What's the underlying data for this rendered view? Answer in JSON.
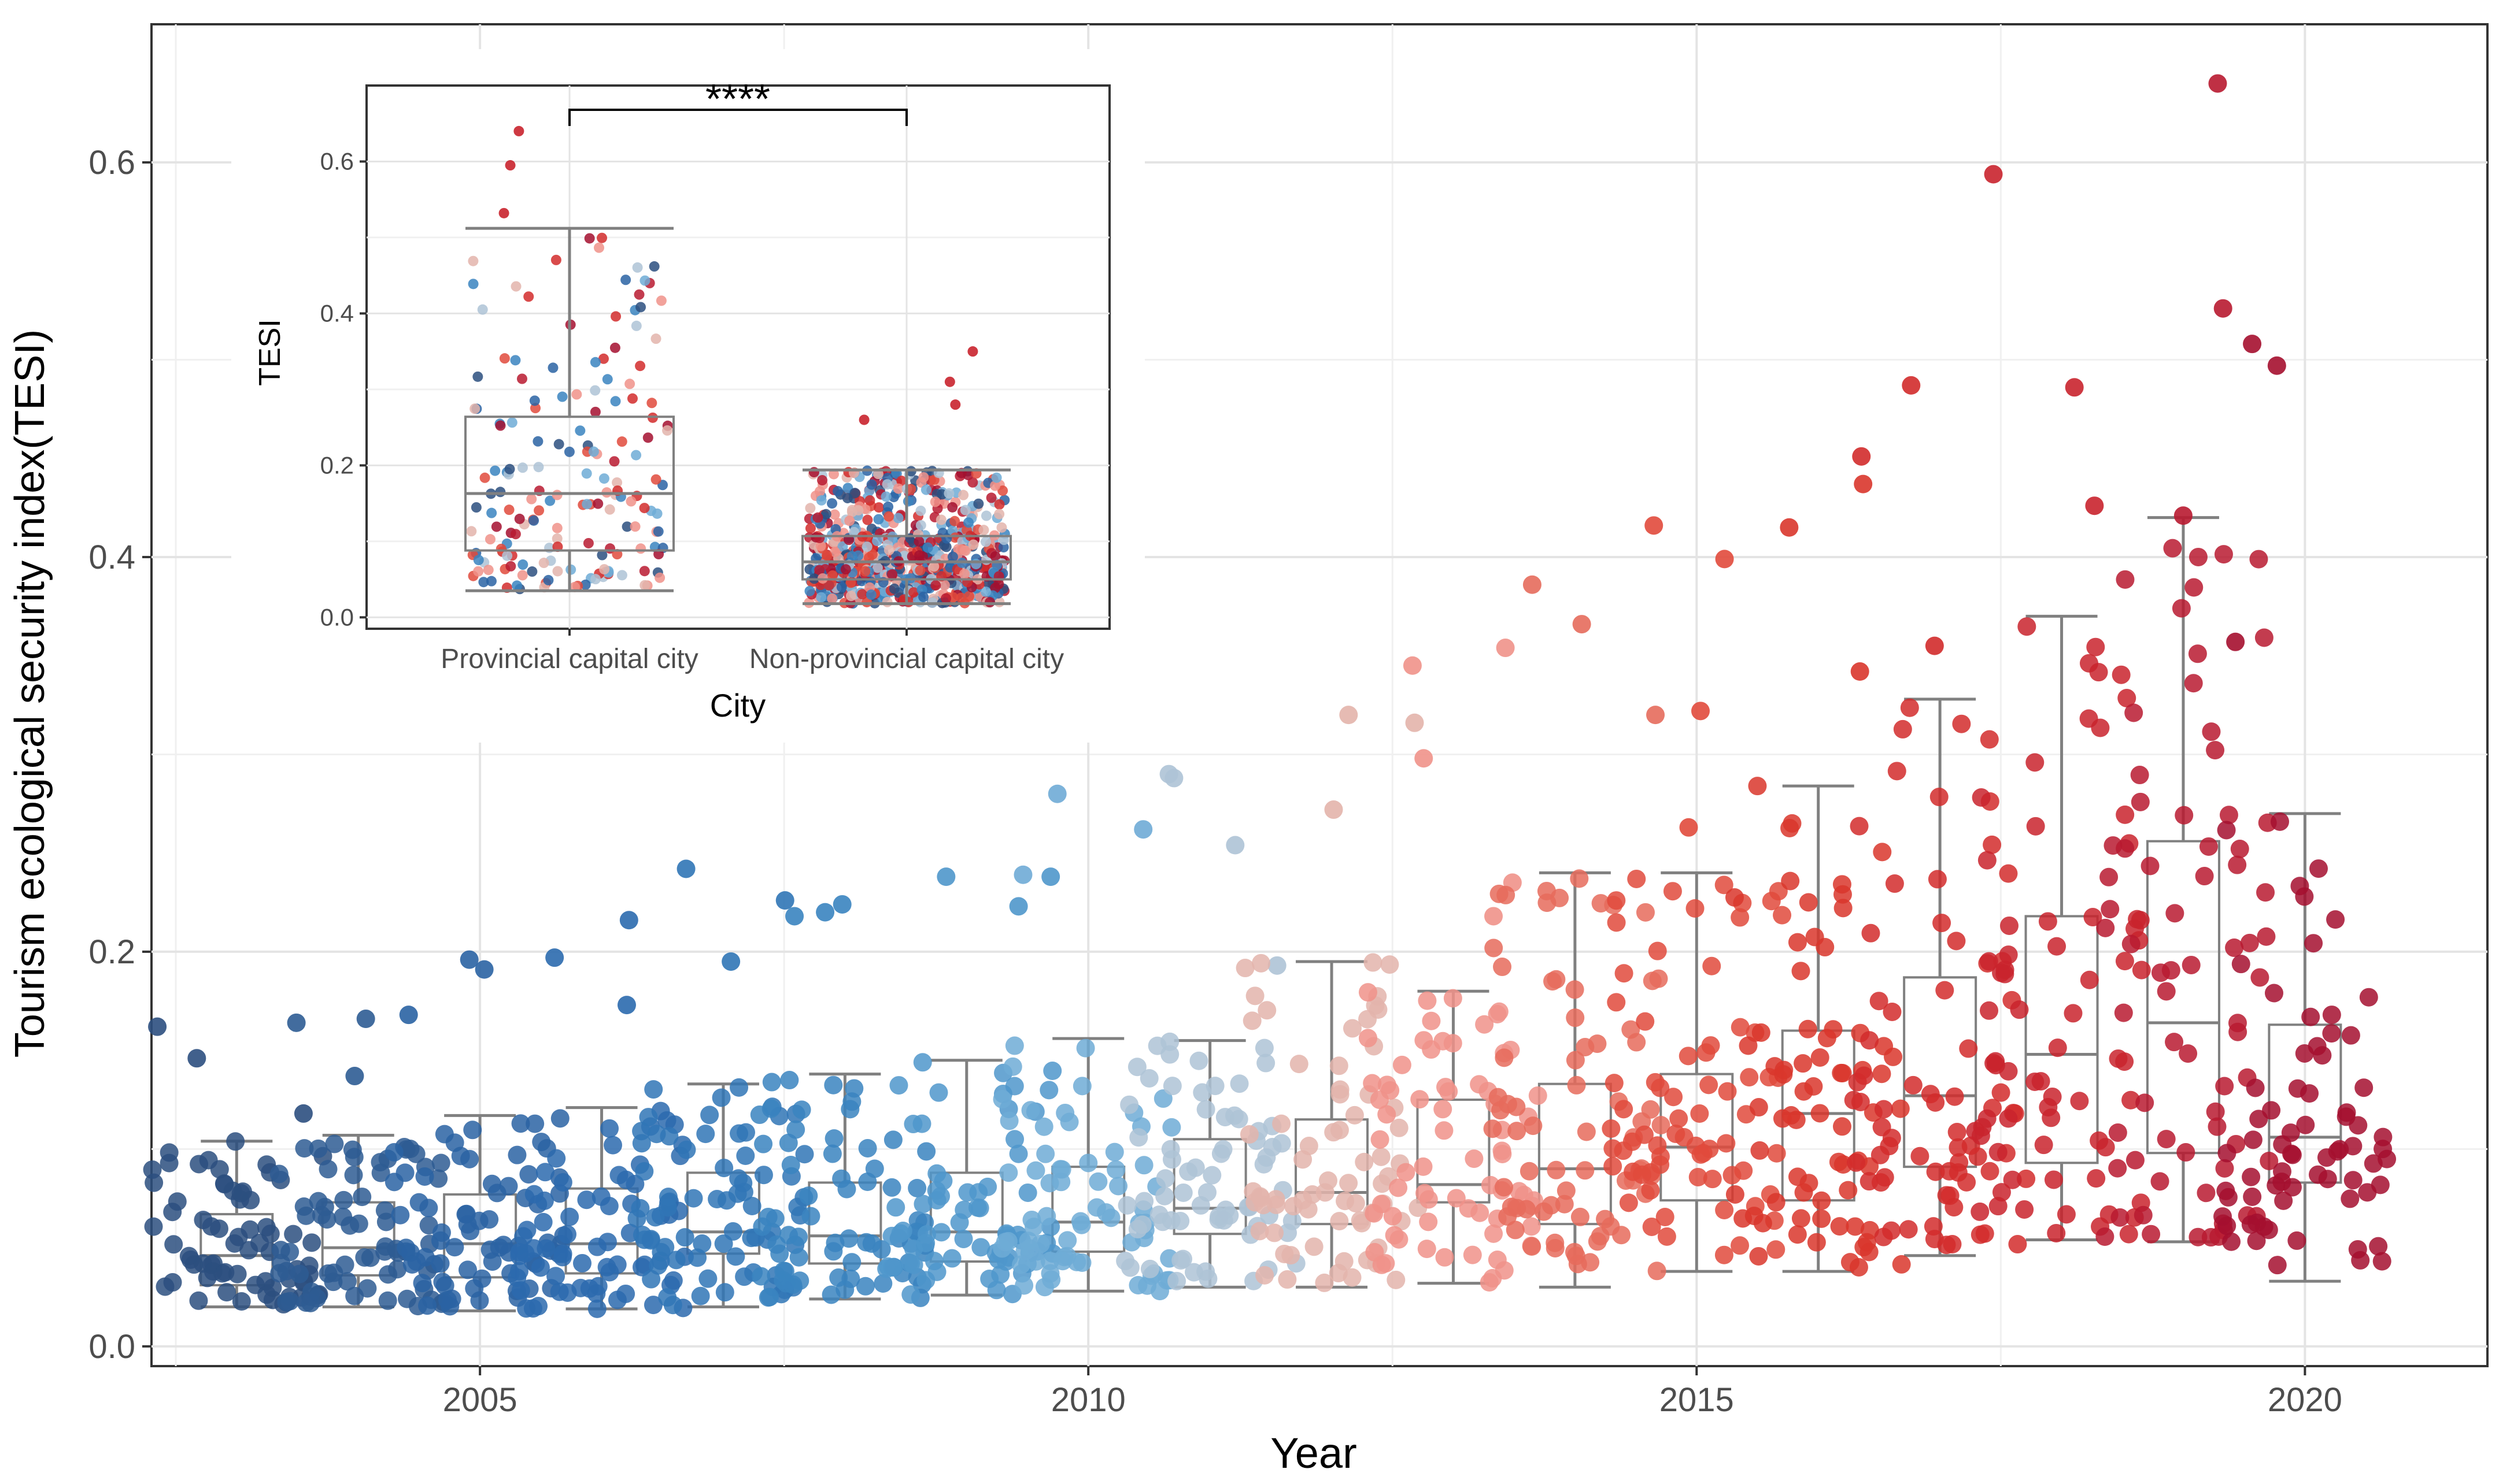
{
  "chart_data": [
    {
      "type": "box+jitter",
      "title": "",
      "xlabel": "Year",
      "ylabel": "Tourism ecological security index(TESI)",
      "xlim": [
        2002.3,
        2021.5
      ],
      "ylim": [
        -0.01,
        0.67
      ],
      "x_ticks": [
        2005,
        2010,
        2015,
        2020
      ],
      "x_tick_labels": [
        "2005",
        "2010",
        "2015",
        "2020"
      ],
      "y_ticks": [
        0.0,
        0.2,
        0.4,
        0.6
      ],
      "y_tick_labels": [
        "0.0",
        "0.2",
        "0.4",
        "0.6"
      ],
      "grid": true,
      "n_points_per_year": 70,
      "boxes": [
        {
          "year": 2003,
          "color": "#2c4f7f",
          "min": 0.02,
          "q1": 0.031,
          "median": 0.046,
          "q3": 0.067,
          "max": 0.104,
          "outliers": [
            0.118,
            0.146,
            0.162
          ]
        },
        {
          "year": 2004,
          "color": "#2e5c93",
          "min": 0.02,
          "q1": 0.036,
          "median": 0.05,
          "q3": 0.073,
          "max": 0.107,
          "outliers": [
            0.137,
            0.164,
            0.166
          ]
        },
        {
          "year": 2005,
          "color": "#2a63a3",
          "min": 0.018,
          "q1": 0.035,
          "median": 0.052,
          "q3": 0.077,
          "max": 0.117,
          "outliers": [
            0.168,
            0.191,
            0.196
          ]
        },
        {
          "year": 2006,
          "color": "#2b6aae",
          "min": 0.019,
          "q1": 0.037,
          "median": 0.052,
          "q3": 0.08,
          "max": 0.121,
          "outliers": [
            0.173,
            0.197,
            0.216
          ]
        },
        {
          "year": 2007,
          "color": "#3075b6",
          "min": 0.02,
          "q1": 0.047,
          "median": 0.058,
          "q3": 0.088,
          "max": 0.133,
          "outliers": [
            0.195,
            0.226,
            0.242
          ]
        },
        {
          "year": 2008,
          "color": "#3a84c0",
          "min": 0.024,
          "q1": 0.042,
          "median": 0.056,
          "q3": 0.083,
          "max": 0.138,
          "outliers": [
            0.218,
            0.22,
            0.224
          ]
        },
        {
          "year": 2009,
          "color": "#4f97cb",
          "min": 0.026,
          "q1": 0.043,
          "median": 0.058,
          "q3": 0.088,
          "max": 0.145,
          "outliers": [
            0.223,
            0.238,
            0.238
          ]
        },
        {
          "year": 2010,
          "color": "#6fabd6",
          "min": 0.028,
          "q1": 0.048,
          "median": 0.063,
          "q3": 0.091,
          "max": 0.156,
          "outliers": [
            0.239,
            0.262,
            0.28
          ]
        },
        {
          "year": 2011,
          "color": "#aec3d6",
          "min": 0.03,
          "q1": 0.057,
          "median": 0.07,
          "q3": 0.105,
          "max": 0.155,
          "outliers": [
            0.193,
            0.254,
            0.288,
            0.29
          ]
        },
        {
          "year": 2012,
          "color": "#e3b4ab",
          "min": 0.03,
          "q1": 0.062,
          "median": 0.078,
          "q3": 0.115,
          "max": 0.195,
          "outliers": [
            0.272,
            0.316,
            0.32
          ]
        },
        {
          "year": 2013,
          "color": "#f0928a",
          "min": 0.032,
          "q1": 0.073,
          "median": 0.082,
          "q3": 0.125,
          "max": 0.18,
          "outliers": [
            0.218,
            0.235,
            0.298,
            0.345,
            0.354
          ]
        },
        {
          "year": 2014,
          "color": "#e66b5c",
          "min": 0.03,
          "q1": 0.062,
          "median": 0.09,
          "q3": 0.133,
          "max": 0.24,
          "outliers": [
            0.32,
            0.366,
            0.386
          ]
        },
        {
          "year": 2015,
          "color": "#e14a3c",
          "min": 0.038,
          "q1": 0.074,
          "median": 0.101,
          "q3": 0.138,
          "max": 0.24,
          "outliers": [
            0.263,
            0.322,
            0.399,
            0.416
          ]
        },
        {
          "year": 2016,
          "color": "#d9362c",
          "min": 0.038,
          "q1": 0.074,
          "median": 0.118,
          "q3": 0.16,
          "max": 0.284,
          "outliers": [
            0.342,
            0.415,
            0.437
          ]
        },
        {
          "year": 2017,
          "color": "#d22b2b",
          "min": 0.046,
          "q1": 0.091,
          "median": 0.127,
          "q3": 0.187,
          "max": 0.328,
          "outliers": [
            0.355,
            0.451,
            0.487
          ]
        },
        {
          "year": 2018,
          "color": "#c9232d",
          "min": 0.054,
          "q1": 0.093,
          "median": 0.148,
          "q3": 0.218,
          "max": 0.37,
          "outliers": [
            0.426,
            0.486,
            0.594
          ]
        },
        {
          "year": 2019,
          "color": "#b81a30",
          "min": 0.053,
          "q1": 0.098,
          "median": 0.164,
          "q3": 0.256,
          "max": 0.42,
          "outliers": [
            0.421,
            0.526,
            0.64
          ]
        },
        {
          "year": 2020,
          "color": "#a50f2f",
          "min": 0.033,
          "q1": 0.083,
          "median": 0.106,
          "q3": 0.163,
          "max": 0.27,
          "outliers": [
            0.357,
            0.497,
            0.508
          ]
        }
      ]
    },
    {
      "type": "box+jitter",
      "title": "",
      "xlabel": "City",
      "ylabel": "TESI",
      "ylim": [
        -0.015,
        0.7
      ],
      "y_ticks": [
        0.0,
        0.2,
        0.4,
        0.6
      ],
      "y_tick_labels": [
        "0.0",
        "0.2",
        "0.4",
        "0.6"
      ],
      "categories": [
        "Provincial capital city",
        "Non-provincial capital city"
      ],
      "grid": true,
      "significance_label": "****",
      "boxes": [
        {
          "category": "Provincial capital city",
          "min": 0.035,
          "q1": 0.088,
          "median": 0.163,
          "q3": 0.264,
          "max": 0.512,
          "n_points": 170,
          "outliers": [
            0.532,
            0.595,
            0.64
          ]
        },
        {
          "category": "Non-provincial capital city",
          "min": 0.018,
          "q1": 0.05,
          "median": 0.073,
          "q3": 0.107,
          "max": 0.194,
          "n_points": 800,
          "outliers": [
            0.26,
            0.28,
            0.31,
            0.35
          ]
        }
      ]
    }
  ]
}
